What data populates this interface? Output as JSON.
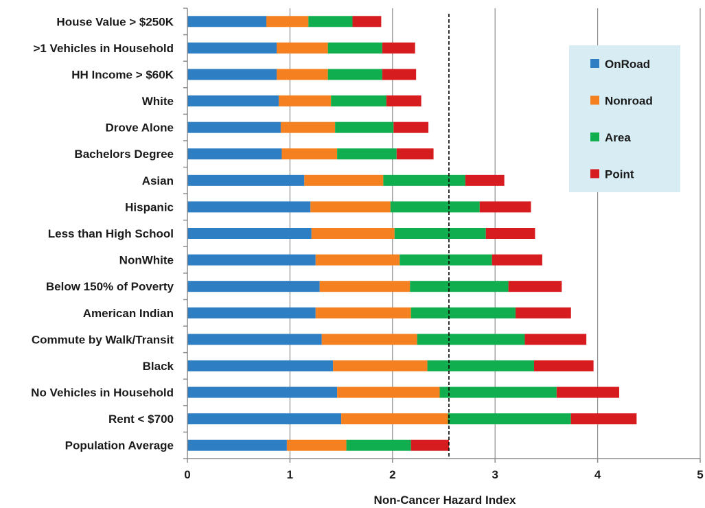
{
  "chart_data": {
    "type": "bar",
    "orientation": "horizontal",
    "stacked": true,
    "title": "",
    "xlabel": "Non-Cancer Hazard Index",
    "ylabel": "",
    "xlim": [
      0,
      5
    ],
    "xticks": [
      "0",
      "1",
      "2",
      "3",
      "4",
      "5"
    ],
    "grid": "vertical",
    "legend_position": "top-right",
    "reference_line": {
      "x": 2.55,
      "style": "dashed"
    },
    "categories": [
      "House Value > $250K",
      ">1 Vehicles in Household",
      "HH Income > $60K",
      "White",
      "Drove Alone",
      "Bachelors Degree",
      "Asian",
      "Hispanic",
      "Less than High School",
      "NonWhite",
      "Below 150% of Poverty",
      "American Indian",
      "Commute by Walk/Transit",
      "Black",
      "No Vehicles in Household",
      "Rent < $700",
      "Population Average"
    ],
    "series": [
      {
        "name": "OnRoad",
        "color": "#2e7ec4",
        "values": [
          0.77,
          0.87,
          0.87,
          0.89,
          0.91,
          0.92,
          1.14,
          1.2,
          1.21,
          1.25,
          1.29,
          1.25,
          1.31,
          1.42,
          1.46,
          1.5,
          0.97
        ]
      },
      {
        "name": "Nonroad",
        "color": "#f4801f",
        "values": [
          0.41,
          0.5,
          0.5,
          0.51,
          0.53,
          0.54,
          0.77,
          0.78,
          0.81,
          0.82,
          0.88,
          0.93,
          0.93,
          0.92,
          1.0,
          1.04,
          0.58
        ]
      },
      {
        "name": "Area",
        "color": "#10ae4f",
        "values": [
          0.43,
          0.53,
          0.53,
          0.54,
          0.57,
          0.58,
          0.8,
          0.87,
          0.89,
          0.9,
          0.96,
          1.02,
          1.05,
          1.04,
          1.14,
          1.2,
          0.63
        ]
      },
      {
        "name": "Point",
        "color": "#d71c1f",
        "values": [
          0.28,
          0.32,
          0.33,
          0.34,
          0.34,
          0.36,
          0.38,
          0.5,
          0.48,
          0.49,
          0.52,
          0.54,
          0.6,
          0.58,
          0.61,
          0.64,
          0.37
        ]
      }
    ]
  }
}
